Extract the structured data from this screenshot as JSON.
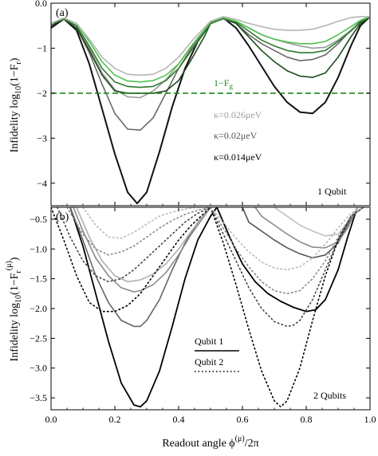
{
  "chart_data": [
    {
      "type": "line",
      "panel_label": "(a)",
      "ylabel": "Infidelity log",
      "ylabel_sub": "10",
      "ylabel_paren": "(1−F",
      "ylabel_fsub": "r",
      "ylabel_close": ")",
      "corner_note": "1 Qubit",
      "xlim": [
        0,
        1
      ],
      "ylim": [
        -4.5,
        0
      ],
      "yticks": [
        "0.0",
        "−1",
        "−2",
        "−3",
        "−4"
      ],
      "ytick_values": [
        0,
        -1,
        -2,
        -3,
        -4
      ],
      "xticks": [
        0,
        0.2,
        0.4,
        0.6,
        0.8,
        1.0
      ],
      "reference_line": {
        "label": "1−F",
        "label_sub": "g",
        "y": -2.0,
        "color": "#1f8a1f",
        "style": "dashed"
      },
      "annotations": [
        {
          "label": "κ=0.026μeV",
          "color": "#9e9e9e"
        },
        {
          "label": "κ=0.02μeV",
          "color": "#555555"
        },
        {
          "label": "κ=0.014μeV",
          "color": "#000000"
        }
      ],
      "series": [
        {
          "color": "#111111",
          "width": 2.0,
          "x": [
            0,
            0.04,
            0.08,
            0.12,
            0.16,
            0.2,
            0.24,
            0.27,
            0.3,
            0.34,
            0.38,
            0.42,
            0.46,
            0.5,
            0.54,
            0.58,
            0.62,
            0.66,
            0.7,
            0.74,
            0.78,
            0.82,
            0.86,
            0.9,
            0.94,
            0.97,
            1.0
          ],
          "y": [
            -0.55,
            -0.35,
            -0.6,
            -1.35,
            -2.35,
            -3.35,
            -4.2,
            -4.45,
            -4.2,
            -3.3,
            -2.3,
            -1.45,
            -0.85,
            -0.45,
            -0.33,
            -0.55,
            -0.95,
            -1.4,
            -1.85,
            -2.2,
            -2.42,
            -2.45,
            -2.2,
            -1.65,
            -0.95,
            -0.5,
            -0.3
          ]
        },
        {
          "color": "#6a6a6a",
          "width": 1.6,
          "x": [
            0,
            0.04,
            0.08,
            0.12,
            0.16,
            0.2,
            0.24,
            0.28,
            0.32,
            0.36,
            0.4,
            0.44,
            0.48,
            0.5,
            0.54,
            0.58,
            0.62,
            0.66,
            0.7,
            0.74,
            0.78,
            0.82,
            0.86,
            0.9,
            0.94,
            0.97,
            1.0
          ],
          "y": [
            -0.5,
            -0.35,
            -0.55,
            -1.1,
            -1.8,
            -2.45,
            -2.8,
            -2.82,
            -2.55,
            -2.0,
            -1.45,
            -1.0,
            -0.6,
            -0.45,
            -0.35,
            -0.45,
            -0.7,
            -0.9,
            -1.05,
            -1.2,
            -1.28,
            -1.25,
            -1.15,
            -0.9,
            -0.6,
            -0.4,
            -0.3
          ]
        },
        {
          "color": "#9a9a9a",
          "width": 1.6,
          "x": [
            0,
            0.04,
            0.08,
            0.12,
            0.16,
            0.2,
            0.24,
            0.28,
            0.32,
            0.36,
            0.4,
            0.44,
            0.48,
            0.5,
            0.54,
            0.58,
            0.62,
            0.66,
            0.7,
            0.74,
            0.78,
            0.82,
            0.86,
            0.9,
            0.94,
            0.97,
            1.0
          ],
          "y": [
            -0.45,
            -0.35,
            -0.5,
            -1.0,
            -1.55,
            -1.92,
            -2.08,
            -2.1,
            -1.95,
            -1.7,
            -1.35,
            -0.95,
            -0.6,
            -0.42,
            -0.33,
            -0.4,
            -0.55,
            -0.7,
            -0.8,
            -0.88,
            -0.95,
            -1.0,
            -0.98,
            -0.82,
            -0.6,
            -0.42,
            -0.3
          ]
        },
        {
          "color": "#1d4d1d",
          "width": 1.6,
          "x": [
            0,
            0.04,
            0.08,
            0.12,
            0.16,
            0.2,
            0.24,
            0.28,
            0.32,
            0.36,
            0.4,
            0.44,
            0.48,
            0.5,
            0.54,
            0.58,
            0.62,
            0.66,
            0.7,
            0.74,
            0.78,
            0.82,
            0.86,
            0.9,
            0.94,
            0.97,
            1.0
          ],
          "y": [
            -0.5,
            -0.35,
            -0.55,
            -1.05,
            -1.6,
            -1.95,
            -2.0,
            -2.0,
            -2.0,
            -1.95,
            -1.72,
            -1.25,
            -0.75,
            -0.45,
            -0.33,
            -0.45,
            -0.75,
            -1.05,
            -1.3,
            -1.5,
            -1.62,
            -1.65,
            -1.55,
            -1.2,
            -0.75,
            -0.45,
            -0.3
          ]
        },
        {
          "color": "#2f7a2f",
          "width": 1.6,
          "x": [
            0,
            0.04,
            0.08,
            0.12,
            0.16,
            0.2,
            0.24,
            0.28,
            0.32,
            0.36,
            0.4,
            0.44,
            0.48,
            0.5,
            0.54,
            0.58,
            0.62,
            0.66,
            0.7,
            0.74,
            0.78,
            0.82,
            0.86,
            0.9,
            0.94,
            0.97,
            1.0
          ],
          "y": [
            -0.45,
            -0.35,
            -0.5,
            -0.95,
            -1.45,
            -1.75,
            -1.85,
            -1.87,
            -1.85,
            -1.72,
            -1.45,
            -1.05,
            -0.65,
            -0.45,
            -0.33,
            -0.42,
            -0.62,
            -0.82,
            -0.95,
            -1.05,
            -1.1,
            -1.1,
            -1.05,
            -0.85,
            -0.62,
            -0.42,
            -0.3
          ]
        },
        {
          "color": "#4ec44e",
          "width": 1.6,
          "x": [
            0,
            0.04,
            0.08,
            0.12,
            0.16,
            0.2,
            0.24,
            0.28,
            0.32,
            0.36,
            0.4,
            0.44,
            0.48,
            0.5,
            0.54,
            0.58,
            0.62,
            0.66,
            0.7,
            0.74,
            0.78,
            0.82,
            0.86,
            0.9,
            0.94,
            0.97,
            1.0
          ],
          "y": [
            -0.45,
            -0.33,
            -0.45,
            -0.85,
            -1.3,
            -1.6,
            -1.73,
            -1.75,
            -1.72,
            -1.6,
            -1.35,
            -0.95,
            -0.6,
            -0.42,
            -0.32,
            -0.4,
            -0.55,
            -0.7,
            -0.8,
            -0.86,
            -0.9,
            -0.9,
            -0.85,
            -0.7,
            -0.52,
            -0.38,
            -0.3
          ]
        },
        {
          "color": "#b5b5b5",
          "width": 1.6,
          "x": [
            0,
            0.04,
            0.08,
            0.12,
            0.16,
            0.2,
            0.24,
            0.28,
            0.32,
            0.36,
            0.4,
            0.44,
            0.48,
            0.5,
            0.54,
            0.58,
            0.62,
            0.66,
            0.7,
            0.74,
            0.78,
            0.82,
            0.86,
            0.9,
            0.94,
            0.97,
            1.0
          ],
          "y": [
            -0.45,
            -0.33,
            -0.45,
            -0.8,
            -1.2,
            -1.45,
            -1.58,
            -1.6,
            -1.58,
            -1.45,
            -1.2,
            -0.85,
            -0.55,
            -0.4,
            -0.3,
            -0.36,
            -0.45,
            -0.52,
            -0.58,
            -0.6,
            -0.6,
            -0.58,
            -0.5,
            -0.4,
            -0.32,
            -0.3,
            -0.3
          ]
        }
      ]
    },
    {
      "type": "line",
      "panel_label": "(b)",
      "ylabel": "Infidelity log",
      "ylabel_sub": "10",
      "ylabel_paren": "(1−F",
      "ylabel_fsub": "r",
      "ylabel_fsup": "(μ)",
      "ylabel_close": ")",
      "corner_note": "2 Qubits",
      "xlabel": "Readout angle ϕ",
      "xlabel_sup": "(μ)",
      "xlabel_tail": "/2π",
      "xlim": [
        0,
        1
      ],
      "ylim": [
        -3.7,
        -0.3
      ],
      "yticks": [
        "−0.5",
        "−1.0",
        "−1.5",
        "−2.0",
        "−2.5",
        "−3.0",
        "−3.5"
      ],
      "ytick_values": [
        -0.5,
        -1.0,
        -1.5,
        -2.0,
        -2.5,
        -3.0,
        -3.5
      ],
      "xticks": [
        "0.0",
        "0.2",
        "0.4",
        "0.6",
        "0.8",
        "1.0"
      ],
      "xtick_values": [
        0,
        0.2,
        0.4,
        0.6,
        0.8,
        1.0
      ],
      "legend": [
        {
          "label": "Qubit 1",
          "style": "solid"
        },
        {
          "label": "Qubit 2",
          "style": "dotted"
        }
      ],
      "series": [
        {
          "color": "#000000",
          "style": "solid",
          "width": 1.8,
          "x": [
            0.06,
            0.1,
            0.14,
            0.18,
            0.22,
            0.26,
            0.28,
            0.3,
            0.34,
            0.38,
            0.42,
            0.46,
            0.5,
            0.52
          ],
          "y": [
            -0.3,
            -0.95,
            -1.75,
            -2.55,
            -3.25,
            -3.62,
            -3.65,
            -3.55,
            -3.05,
            -2.3,
            -1.5,
            -0.85,
            -0.45,
            -0.3
          ]
        },
        {
          "color": "#666666",
          "style": "solid",
          "width": 1.6,
          "x": [
            0.06,
            0.1,
            0.14,
            0.18,
            0.22,
            0.26,
            0.28,
            0.3,
            0.34,
            0.38,
            0.42,
            0.46,
            0.5
          ],
          "y": [
            -0.3,
            -0.85,
            -1.45,
            -1.9,
            -2.2,
            -2.3,
            -2.3,
            -2.2,
            -1.85,
            -1.35,
            -0.9,
            -0.55,
            -0.3
          ]
        },
        {
          "color": "#8a8a8a",
          "style": "solid",
          "width": 1.6,
          "x": [
            0.07,
            0.1,
            0.14,
            0.18,
            0.22,
            0.26,
            0.28,
            0.32,
            0.36,
            0.4,
            0.44,
            0.48,
            0.5
          ],
          "y": [
            -0.3,
            -0.7,
            -1.15,
            -1.45,
            -1.65,
            -1.72,
            -1.7,
            -1.6,
            -1.4,
            -1.1,
            -0.75,
            -0.45,
            -0.3
          ]
        },
        {
          "color": "#b0b0b0",
          "style": "solid",
          "width": 1.6,
          "x": [
            0.08,
            0.12,
            0.16,
            0.2,
            0.24,
            0.28,
            0.32,
            0.36,
            0.4,
            0.44,
            0.48,
            0.5
          ],
          "y": [
            -0.3,
            -0.8,
            -1.2,
            -1.45,
            -1.55,
            -1.52,
            -1.42,
            -1.25,
            -1.0,
            -0.7,
            -0.42,
            -0.3
          ]
        },
        {
          "color": "#000000",
          "style": "solid",
          "width": 1.8,
          "x": [
            0.52,
            0.56,
            0.6,
            0.64,
            0.68,
            0.72,
            0.76,
            0.8,
            0.83,
            0.86,
            0.9,
            0.93,
            0.96
          ],
          "y": [
            -0.3,
            -0.8,
            -1.25,
            -1.55,
            -1.75,
            -1.88,
            -1.98,
            -2.05,
            -2.02,
            -1.85,
            -1.35,
            -0.8,
            -0.3
          ]
        },
        {
          "color": "#555555",
          "style": "solid",
          "width": 1.6,
          "x": [
            0.6,
            0.62,
            0.66,
            0.7,
            0.74,
            0.78,
            0.82,
            0.86,
            0.9,
            0.93,
            0.96
          ],
          "y": [
            -0.3,
            -0.55,
            -0.7,
            -0.85,
            -0.98,
            -1.08,
            -1.15,
            -1.1,
            -0.9,
            -0.6,
            -0.3
          ]
        },
        {
          "color": "#8a8a8a",
          "style": "solid",
          "width": 1.6,
          "x": [
            0.64,
            0.66,
            0.7,
            0.74,
            0.78,
            0.82,
            0.86,
            0.9,
            0.93,
            0.96
          ],
          "y": [
            -0.3,
            -0.45,
            -0.6,
            -0.75,
            -0.88,
            -0.97,
            -0.98,
            -0.88,
            -0.65,
            -0.3
          ]
        },
        {
          "color": "#c0c0c0",
          "style": "solid",
          "width": 1.6,
          "x": [
            0.7,
            0.74,
            0.78,
            0.82,
            0.86,
            0.9,
            0.93,
            0.96
          ],
          "y": [
            -0.3,
            -0.45,
            -0.6,
            -0.7,
            -0.78,
            -0.75,
            -0.55,
            -0.3
          ]
        },
        {
          "color": "#000000",
          "style": "dotted",
          "width": 1.6,
          "x": [
            0.0,
            0.04,
            0.08,
            0.12,
            0.16,
            0.2,
            0.24,
            0.28,
            0.32,
            0.36,
            0.4,
            0.44,
            0.48,
            0.5
          ],
          "y": [
            -0.3,
            -0.85,
            -1.45,
            -1.9,
            -2.05,
            -2.05,
            -1.95,
            -1.75,
            -1.45,
            -1.15,
            -0.85,
            -0.6,
            -0.4,
            -0.3
          ]
        },
        {
          "color": "#444444",
          "style": "dotted",
          "width": 1.6,
          "x": [
            0.02,
            0.06,
            0.1,
            0.14,
            0.18,
            0.22,
            0.26,
            0.3,
            0.34,
            0.38,
            0.42,
            0.46,
            0.5
          ],
          "y": [
            -0.3,
            -0.8,
            -1.2,
            -1.45,
            -1.55,
            -1.5,
            -1.35,
            -1.15,
            -0.95,
            -0.75,
            -0.55,
            -0.4,
            -0.3
          ]
        },
        {
          "color": "#888888",
          "style": "dotted",
          "width": 1.6,
          "x": [
            0.05,
            0.1,
            0.14,
            0.18,
            0.22,
            0.26,
            0.3,
            0.34,
            0.38,
            0.42,
            0.46,
            0.5
          ],
          "y": [
            -0.3,
            -0.75,
            -1.0,
            -1.1,
            -1.05,
            -0.95,
            -0.8,
            -0.65,
            -0.52,
            -0.42,
            -0.35,
            -0.3
          ]
        },
        {
          "color": "#b8b8b8",
          "style": "dotted",
          "width": 1.6,
          "x": [
            0.1,
            0.14,
            0.18,
            0.22,
            0.26,
            0.3,
            0.34,
            0.38,
            0.42,
            0.46,
            0.5
          ],
          "y": [
            -0.3,
            -0.6,
            -0.8,
            -0.82,
            -0.72,
            -0.58,
            -0.45,
            -0.38,
            -0.33,
            -0.3,
            -0.3
          ]
        },
        {
          "color": "#000000",
          "style": "dotted",
          "width": 1.6,
          "x": [
            0.5,
            0.54,
            0.58,
            0.62,
            0.66,
            0.7,
            0.72,
            0.74,
            0.78,
            0.82,
            0.86,
            0.9,
            0.94,
            0.98
          ],
          "y": [
            -0.3,
            -0.9,
            -1.6,
            -2.35,
            -3.05,
            -3.55,
            -3.65,
            -3.55,
            -3.0,
            -2.2,
            -1.45,
            -0.85,
            -0.45,
            -0.3
          ]
        },
        {
          "color": "#444444",
          "style": "dotted",
          "width": 1.6,
          "x": [
            0.5,
            0.54,
            0.58,
            0.62,
            0.66,
            0.7,
            0.74,
            0.76,
            0.78,
            0.82,
            0.86,
            0.9,
            0.94,
            0.98
          ],
          "y": [
            -0.3,
            -0.75,
            -1.2,
            -1.65,
            -2.0,
            -2.22,
            -2.3,
            -2.28,
            -2.2,
            -1.85,
            -1.35,
            -0.85,
            -0.45,
            -0.3
          ]
        },
        {
          "color": "#888888",
          "style": "dotted",
          "width": 1.6,
          "x": [
            0.5,
            0.54,
            0.58,
            0.62,
            0.66,
            0.7,
            0.74,
            0.78,
            0.82,
            0.86,
            0.9,
            0.94,
            0.98
          ],
          "y": [
            -0.3,
            -0.65,
            -1.0,
            -1.3,
            -1.55,
            -1.7,
            -1.75,
            -1.7,
            -1.5,
            -1.2,
            -0.8,
            -0.45,
            -0.3
          ]
        },
        {
          "color": "#b8b8b8",
          "style": "dotted",
          "width": 1.6,
          "x": [
            0.5,
            0.54,
            0.58,
            0.62,
            0.66,
            0.7,
            0.74,
            0.78,
            0.82,
            0.86,
            0.9,
            0.94,
            0.98
          ],
          "y": [
            -0.3,
            -0.55,
            -0.82,
            -1.05,
            -1.22,
            -1.32,
            -1.35,
            -1.3,
            -1.15,
            -0.92,
            -0.65,
            -0.4,
            -0.3
          ]
        }
      ]
    }
  ]
}
